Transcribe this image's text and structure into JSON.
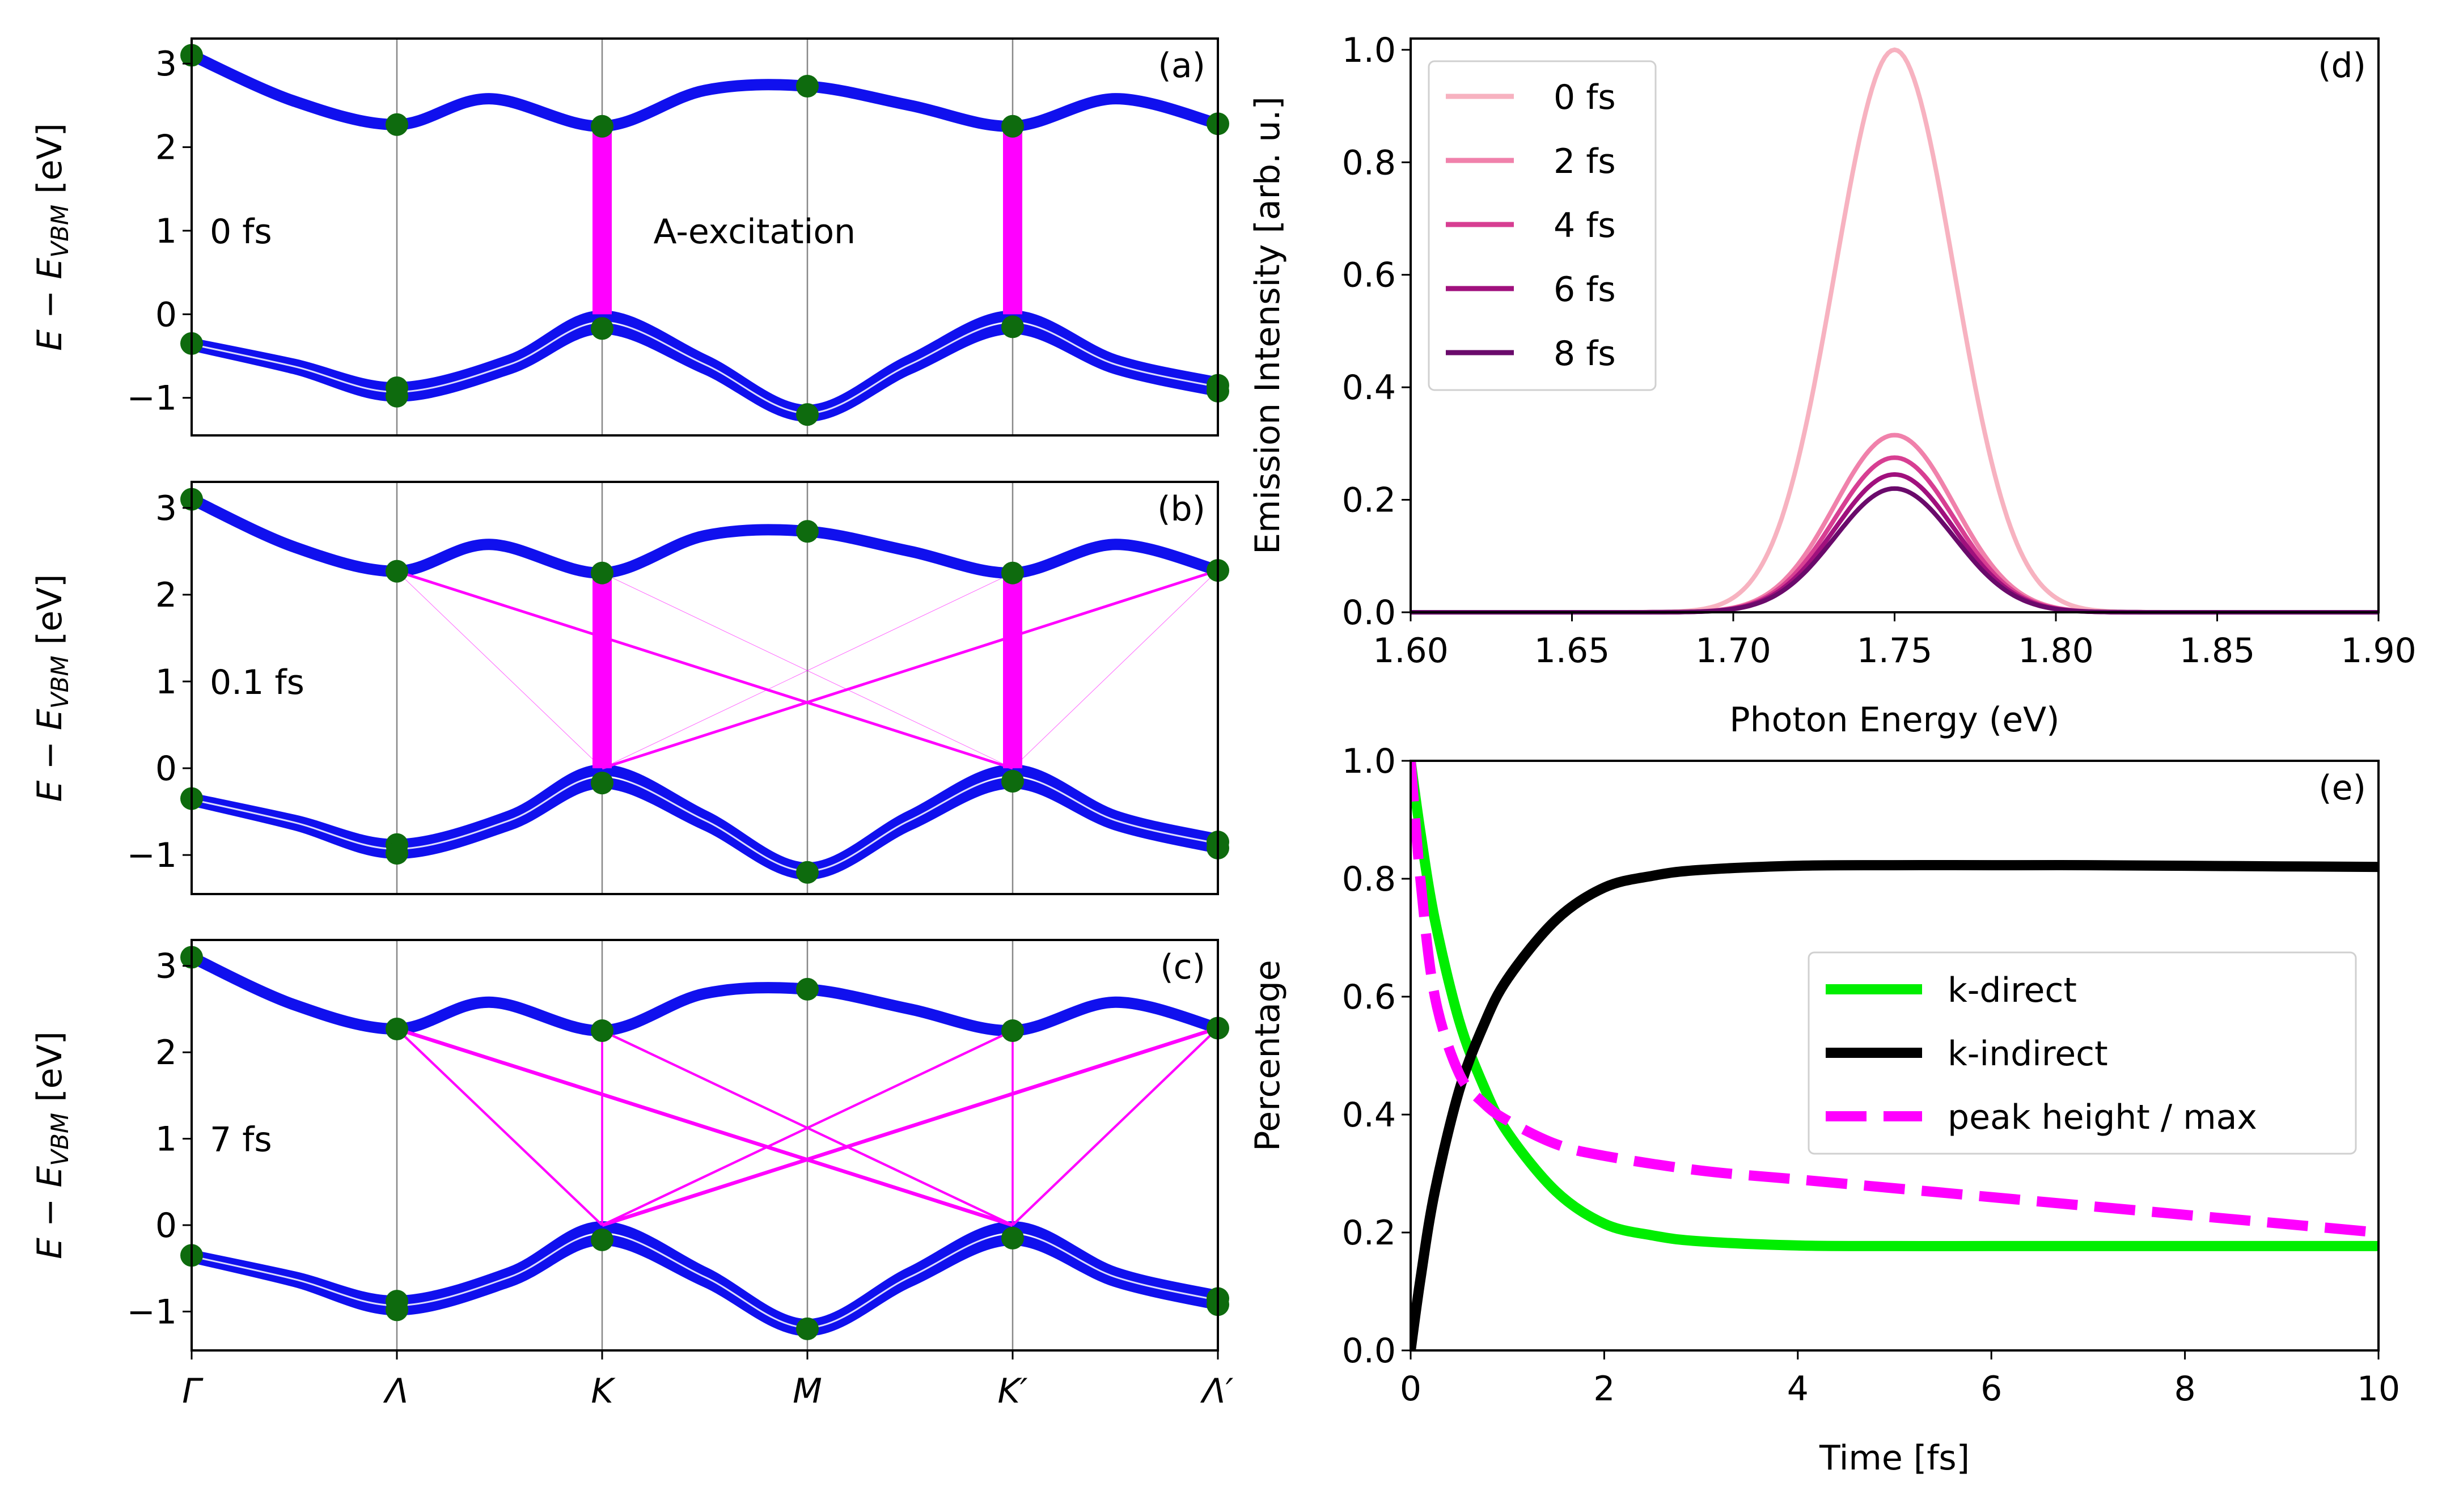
{
  "chart_data": [
    {
      "id": "a",
      "type": "line",
      "panel_label": "(a)",
      "time_label": "0 fs",
      "annotation": "A-excitation",
      "ylabel": "E − E_VBM [eV]",
      "ylabel_base": "E − E",
      "ylabel_sub": "VBM",
      "ylabel_unit": " [eV]",
      "ylim": [
        -1.45,
        3.3
      ],
      "yticks": [
        -1,
        0,
        1,
        2,
        3
      ],
      "xtick_labels": [
        "Γ",
        "Λ",
        "K",
        "M",
        "K′",
        "Λ′"
      ],
      "conduction_band": [
        [
          0,
          3.1
        ],
        [
          0.5,
          2.55
        ],
        [
          1,
          2.27
        ],
        [
          1.45,
          2.58
        ],
        [
          2,
          2.25
        ],
        [
          2.5,
          2.68
        ],
        [
          3,
          2.73
        ],
        [
          3.5,
          2.5
        ],
        [
          4,
          2.25
        ],
        [
          4.5,
          2.58
        ],
        [
          5,
          2.28
        ]
      ],
      "valence_band_upper": [
        [
          0,
          -0.35
        ],
        [
          0.5,
          -0.6
        ],
        [
          1,
          -0.88
        ],
        [
          1.55,
          -0.55
        ],
        [
          2,
          -0.02
        ],
        [
          2.5,
          -0.55
        ],
        [
          3,
          -1.15
        ],
        [
          3.5,
          -0.55
        ],
        [
          4,
          -0.02
        ],
        [
          4.5,
          -0.55
        ],
        [
          5,
          -0.82
        ]
      ],
      "valence_band_lower": [
        [
          0,
          -0.37
        ],
        [
          0.5,
          -0.65
        ],
        [
          1,
          -0.98
        ],
        [
          1.55,
          -0.65
        ],
        [
          2,
          -0.17
        ],
        [
          2.5,
          -0.65
        ],
        [
          3,
          -1.22
        ],
        [
          3.5,
          -0.65
        ],
        [
          4,
          -0.17
        ],
        [
          4.5,
          -0.65
        ],
        [
          5,
          -0.92
        ]
      ],
      "high_symmetry_points": [
        [
          0,
          3.1
        ],
        [
          0,
          -0.35
        ],
        [
          1,
          2.27
        ],
        [
          1,
          -0.88
        ],
        [
          1,
          -0.98
        ],
        [
          2,
          2.25
        ],
        [
          2,
          -0.17
        ],
        [
          3,
          2.73
        ],
        [
          3,
          -1.2
        ],
        [
          4,
          2.25
        ],
        [
          4,
          -0.15
        ],
        [
          5,
          2.28
        ],
        [
          5,
          -0.85
        ],
        [
          5,
          -0.92
        ]
      ],
      "transitions": [
        {
          "x1": 2,
          "y1": 0.0,
          "x2": 2,
          "y2": 2.25,
          "weight": 1.0
        },
        {
          "x1": 4,
          "y1": 0.0,
          "x2": 4,
          "y2": 2.25,
          "weight": 1.0
        }
      ]
    },
    {
      "id": "b",
      "type": "line",
      "panel_label": "(b)",
      "time_label": "0.1 fs",
      "ylabel": "E − E_VBM [eV]",
      "ylabel_base": "E − E",
      "ylabel_sub": "VBM",
      "ylabel_unit": " [eV]",
      "ylim": [
        -1.45,
        3.3
      ],
      "yticks": [
        -1,
        0,
        1,
        2,
        3
      ],
      "xtick_labels": [
        "Γ",
        "Λ",
        "K",
        "M",
        "K′",
        "Λ′"
      ],
      "conduction_band": [
        [
          0,
          3.1
        ],
        [
          0.5,
          2.55
        ],
        [
          1,
          2.27
        ],
        [
          1.45,
          2.58
        ],
        [
          2,
          2.25
        ],
        [
          2.5,
          2.68
        ],
        [
          3,
          2.73
        ],
        [
          3.5,
          2.5
        ],
        [
          4,
          2.25
        ],
        [
          4.5,
          2.58
        ],
        [
          5,
          2.28
        ]
      ],
      "valence_band_upper": [
        [
          0,
          -0.35
        ],
        [
          0.5,
          -0.6
        ],
        [
          1,
          -0.88
        ],
        [
          1.55,
          -0.55
        ],
        [
          2,
          -0.02
        ],
        [
          2.5,
          -0.55
        ],
        [
          3,
          -1.15
        ],
        [
          3.5,
          -0.55
        ],
        [
          4,
          -0.02
        ],
        [
          4.5,
          -0.55
        ],
        [
          5,
          -0.82
        ]
      ],
      "valence_band_lower": [
        [
          0,
          -0.37
        ],
        [
          0.5,
          -0.65
        ],
        [
          1,
          -0.98
        ],
        [
          1.55,
          -0.65
        ],
        [
          2,
          -0.17
        ],
        [
          2.5,
          -0.65
        ],
        [
          3,
          -1.22
        ],
        [
          3.5,
          -0.65
        ],
        [
          4,
          -0.17
        ],
        [
          4.5,
          -0.65
        ],
        [
          5,
          -0.92
        ]
      ],
      "high_symmetry_points": [
        [
          0,
          3.1
        ],
        [
          0,
          -0.35
        ],
        [
          1,
          2.27
        ],
        [
          1,
          -0.88
        ],
        [
          1,
          -0.98
        ],
        [
          2,
          2.25
        ],
        [
          2,
          -0.17
        ],
        [
          3,
          2.73
        ],
        [
          3,
          -1.2
        ],
        [
          4,
          2.25
        ],
        [
          4,
          -0.15
        ],
        [
          5,
          2.28
        ],
        [
          5,
          -0.85
        ],
        [
          5,
          -0.92
        ]
      ],
      "transitions": [
        {
          "x1": 2,
          "y1": 0.0,
          "x2": 2,
          "y2": 2.25,
          "weight": 1.0
        },
        {
          "x1": 4,
          "y1": 0.0,
          "x2": 4,
          "y2": 2.25,
          "weight": 1.0
        },
        {
          "x1": 1,
          "y1": 2.27,
          "x2": 4,
          "y2": 0.0,
          "weight": 0.4
        },
        {
          "x1": 5,
          "y1": 2.28,
          "x2": 2,
          "y2": 0.0,
          "weight": 0.4
        },
        {
          "x1": 1,
          "y1": 2.27,
          "x2": 2,
          "y2": 0.0,
          "weight": 0.08
        },
        {
          "x1": 2,
          "y1": 2.25,
          "x2": 4,
          "y2": 0.0,
          "weight": 0.05
        },
        {
          "x1": 4,
          "y1": 2.25,
          "x2": 2,
          "y2": 0.0,
          "weight": 0.05
        },
        {
          "x1": 5,
          "y1": 2.28,
          "x2": 4,
          "y2": 0.0,
          "weight": 0.08
        }
      ]
    },
    {
      "id": "c",
      "type": "line",
      "panel_label": "(c)",
      "time_label": "7 fs",
      "ylabel": "E − E_VBM [eV]",
      "ylabel_base": "E − E",
      "ylabel_sub": "VBM",
      "ylabel_unit": " [eV]",
      "ylim": [
        -1.45,
        3.3
      ],
      "yticks": [
        -1,
        0,
        1,
        2,
        3
      ],
      "xtick_labels": [
        "Γ",
        "Λ",
        "K",
        "M",
        "K′",
        "Λ′"
      ],
      "conduction_band": [
        [
          0,
          3.1
        ],
        [
          0.5,
          2.55
        ],
        [
          1,
          2.27
        ],
        [
          1.45,
          2.58
        ],
        [
          2,
          2.25
        ],
        [
          2.5,
          2.68
        ],
        [
          3,
          2.73
        ],
        [
          3.5,
          2.5
        ],
        [
          4,
          2.25
        ],
        [
          4.5,
          2.58
        ],
        [
          5,
          2.28
        ]
      ],
      "valence_band_upper": [
        [
          0,
          -0.35
        ],
        [
          0.5,
          -0.6
        ],
        [
          1,
          -0.88
        ],
        [
          1.55,
          -0.55
        ],
        [
          2,
          -0.02
        ],
        [
          2.5,
          -0.55
        ],
        [
          3,
          -1.15
        ],
        [
          3.5,
          -0.55
        ],
        [
          4,
          -0.02
        ],
        [
          4.5,
          -0.55
        ],
        [
          5,
          -0.82
        ]
      ],
      "valence_band_lower": [
        [
          0,
          -0.37
        ],
        [
          0.5,
          -0.65
        ],
        [
          1,
          -0.98
        ],
        [
          1.55,
          -0.65
        ],
        [
          2,
          -0.17
        ],
        [
          2.5,
          -0.65
        ],
        [
          3,
          -1.22
        ],
        [
          3.5,
          -0.65
        ],
        [
          4,
          -0.17
        ],
        [
          4.5,
          -0.65
        ],
        [
          5,
          -0.92
        ]
      ],
      "high_symmetry_points": [
        [
          0,
          3.1
        ],
        [
          0,
          -0.35
        ],
        [
          1,
          2.27
        ],
        [
          1,
          -0.88
        ],
        [
          1,
          -0.98
        ],
        [
          2,
          2.25
        ],
        [
          2,
          -0.17
        ],
        [
          3,
          2.73
        ],
        [
          3,
          -1.2
        ],
        [
          4,
          2.25
        ],
        [
          4,
          -0.15
        ],
        [
          5,
          2.28
        ],
        [
          5,
          -0.85
        ],
        [
          5,
          -0.92
        ]
      ],
      "transitions": [
        {
          "x1": 1,
          "y1": 2.27,
          "x2": 4,
          "y2": 0.0,
          "weight": 0.55
        },
        {
          "x1": 5,
          "y1": 2.28,
          "x2": 2,
          "y2": 0.0,
          "weight": 0.55
        },
        {
          "x1": 1,
          "y1": 2.27,
          "x2": 2,
          "y2": 0.0,
          "weight": 0.35
        },
        {
          "x1": 5,
          "y1": 2.28,
          "x2": 4,
          "y2": 0.0,
          "weight": 0.35
        },
        {
          "x1": 2,
          "y1": 2.25,
          "x2": 2,
          "y2": 0.0,
          "weight": 0.3
        },
        {
          "x1": 4,
          "y1": 2.25,
          "x2": 4,
          "y2": 0.0,
          "weight": 0.3
        },
        {
          "x1": 2,
          "y1": 2.25,
          "x2": 4,
          "y2": 0.0,
          "weight": 0.35
        },
        {
          "x1": 4,
          "y1": 2.25,
          "x2": 2,
          "y2": 0.0,
          "weight": 0.35
        }
      ]
    },
    {
      "id": "d",
      "type": "line",
      "panel_label": "(d)",
      "xlabel": "Photon Energy (eV)",
      "ylabel": "Emission Intensity [arb. u.]",
      "xlim": [
        1.6,
        1.9
      ],
      "ylim": [
        0.0,
        1.02
      ],
      "xticks": [
        1.6,
        1.65,
        1.7,
        1.75,
        1.8,
        1.85,
        1.9
      ],
      "xtick_labels": [
        "1.60",
        "1.65",
        "1.70",
        "1.75",
        "1.80",
        "1.85",
        "1.90"
      ],
      "yticks": [
        0.0,
        0.2,
        0.4,
        0.6,
        0.8,
        1.0
      ],
      "ytick_labels": [
        "0.0",
        "0.2",
        "0.4",
        "0.6",
        "0.8",
        "1.0"
      ],
      "peak_center": 1.75,
      "peak_sigma": 0.0185,
      "legend_position": "top-left",
      "series": [
        {
          "name": "0 fs",
          "peak_height": 1.0,
          "color": "#f7b2c0"
        },
        {
          "name": "2 fs",
          "peak_height": 0.315,
          "color": "#f081ab"
        },
        {
          "name": "4 fs",
          "peak_height": 0.275,
          "color": "#d73e92"
        },
        {
          "name": "6 fs",
          "peak_height": 0.245,
          "color": "#a0107d"
        },
        {
          "name": "8 fs",
          "peak_height": 0.22,
          "color": "#6a0a6b"
        }
      ]
    },
    {
      "id": "e",
      "type": "line",
      "panel_label": "(e)",
      "xlabel": "Time [fs]",
      "ylabel": "Percentage",
      "xlim": [
        0,
        10
      ],
      "ylim": [
        0.0,
        1.0
      ],
      "xticks": [
        0,
        2,
        4,
        6,
        8,
        10
      ],
      "xtick_labels": [
        "0",
        "2",
        "4",
        "6",
        "8",
        "10"
      ],
      "yticks": [
        0.0,
        0.2,
        0.4,
        0.6,
        0.8,
        1.0
      ],
      "ytick_labels": [
        "0.0",
        "0.2",
        "0.4",
        "0.6",
        "0.8",
        "1.0"
      ],
      "legend_position": "center-right",
      "series": [
        {
          "name": "k-direct",
          "color": "#00ee00",
          "style": "solid",
          "x": [
            0,
            0.1,
            0.25,
            0.5,
            0.75,
            1,
            1.5,
            2,
            2.5,
            3,
            4,
            5,
            6,
            7,
            8,
            9,
            10
          ],
          "y": [
            1.0,
            0.88,
            0.73,
            0.56,
            0.45,
            0.37,
            0.27,
            0.215,
            0.195,
            0.185,
            0.178,
            0.177,
            0.177,
            0.177,
            0.177,
            0.177,
            0.177
          ]
        },
        {
          "name": "k-indirect",
          "color": "#000000",
          "style": "solid",
          "x": [
            0,
            0.1,
            0.25,
            0.5,
            0.75,
            1,
            1.5,
            2,
            2.5,
            3,
            4,
            5,
            6,
            7,
            8,
            9,
            10
          ],
          "y": [
            0.0,
            0.12,
            0.27,
            0.44,
            0.55,
            0.63,
            0.73,
            0.785,
            0.805,
            0.815,
            0.822,
            0.823,
            0.823,
            0.823,
            0.822,
            0.821,
            0.82
          ]
        },
        {
          "name": "peak height / max",
          "color": "#ff00ff",
          "style": "dashed",
          "x": [
            0,
            0.1,
            0.25,
            0.5,
            0.75,
            1,
            1.5,
            2,
            3,
            4,
            5,
            6,
            7,
            8,
            9,
            10
          ],
          "y": [
            1.0,
            0.8,
            0.6,
            0.47,
            0.42,
            0.39,
            0.35,
            0.33,
            0.305,
            0.29,
            0.275,
            0.26,
            0.245,
            0.23,
            0.215,
            0.2
          ]
        }
      ]
    }
  ]
}
